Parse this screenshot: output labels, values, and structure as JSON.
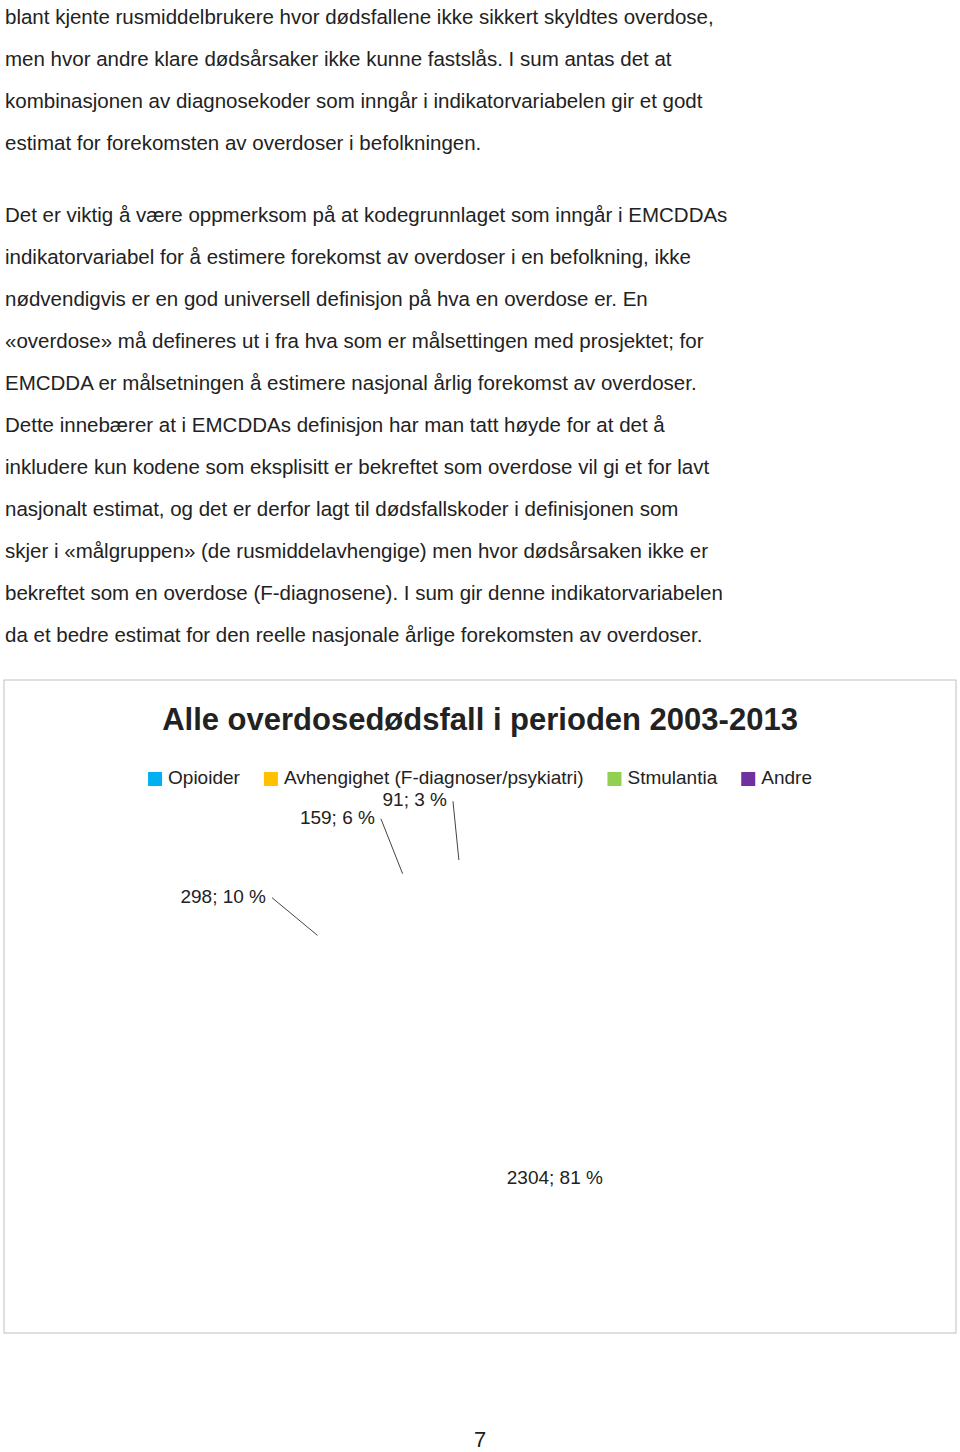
{
  "paragraphs": [
    {
      "lines": [
        "blant kjente rusmiddelbrukere hvor dødsfallene ikke sikkert skyldtes overdose,",
        "men hvor andre klare dødsårsaker ikke kunne fastslås. I sum antas det at",
        "kombinasjonen av diagnosekoder som inngår i indikatorvariabelen gir et godt",
        "estimat for forekomsten av overdoser i befolkningen."
      ]
    },
    {
      "lines": [
        "Det er viktig å være oppmerksom på at kodegrunnlaget som inngår i EMCDDAs",
        "indikatorvariabel for å estimere forekomst av overdoser i en befolkning, ikke",
        "nødvendigvis er en god universell definisjon på hva en overdose er. En",
        "«overdose» må defineres ut i fra hva som er målsettingen med prosjektet; for",
        "EMCDDA er målsetningen å estimere nasjonal årlig forekomst av overdoser.",
        "Dette innebærer at i EMCDDAs definisjon har man tatt høyde for at det å",
        "inkludere kun kodene som eksplisitt er bekreftet som overdose vil gi et for lavt",
        "nasjonalt estimat, og det er derfor lagt til dødsfallskoder i definisjonen som",
        "skjer i «målgruppen» (de rusmiddelavhengige) men hvor dødsårsaken ikke er",
        "bekreftet som en overdose (F-diagnosene). I sum gir denne indikatorvariabelen",
        "da et bedre estimat for den reelle nasjonale årlige forekomsten av overdoser."
      ]
    }
  ],
  "chart_data": {
    "type": "pie",
    "title": "Alle overdosedødsfall i perioden 2003-2013",
    "categories": [
      "Opioider",
      "Avhengighet (F-diagnoser/psykiatri)",
      "Stmulantia",
      "Andre"
    ],
    "values": [
      2304,
      298,
      159,
      91
    ],
    "value_labels": [
      "2304; 81 %",
      "298; 10 %",
      "159; 6 %",
      "91; 3 %"
    ],
    "colors": [
      "#00b0f0",
      "#ffc000",
      "#92d050",
      "#7030a0"
    ],
    "data_labels": true,
    "legend": "top"
  },
  "page_number": "7"
}
